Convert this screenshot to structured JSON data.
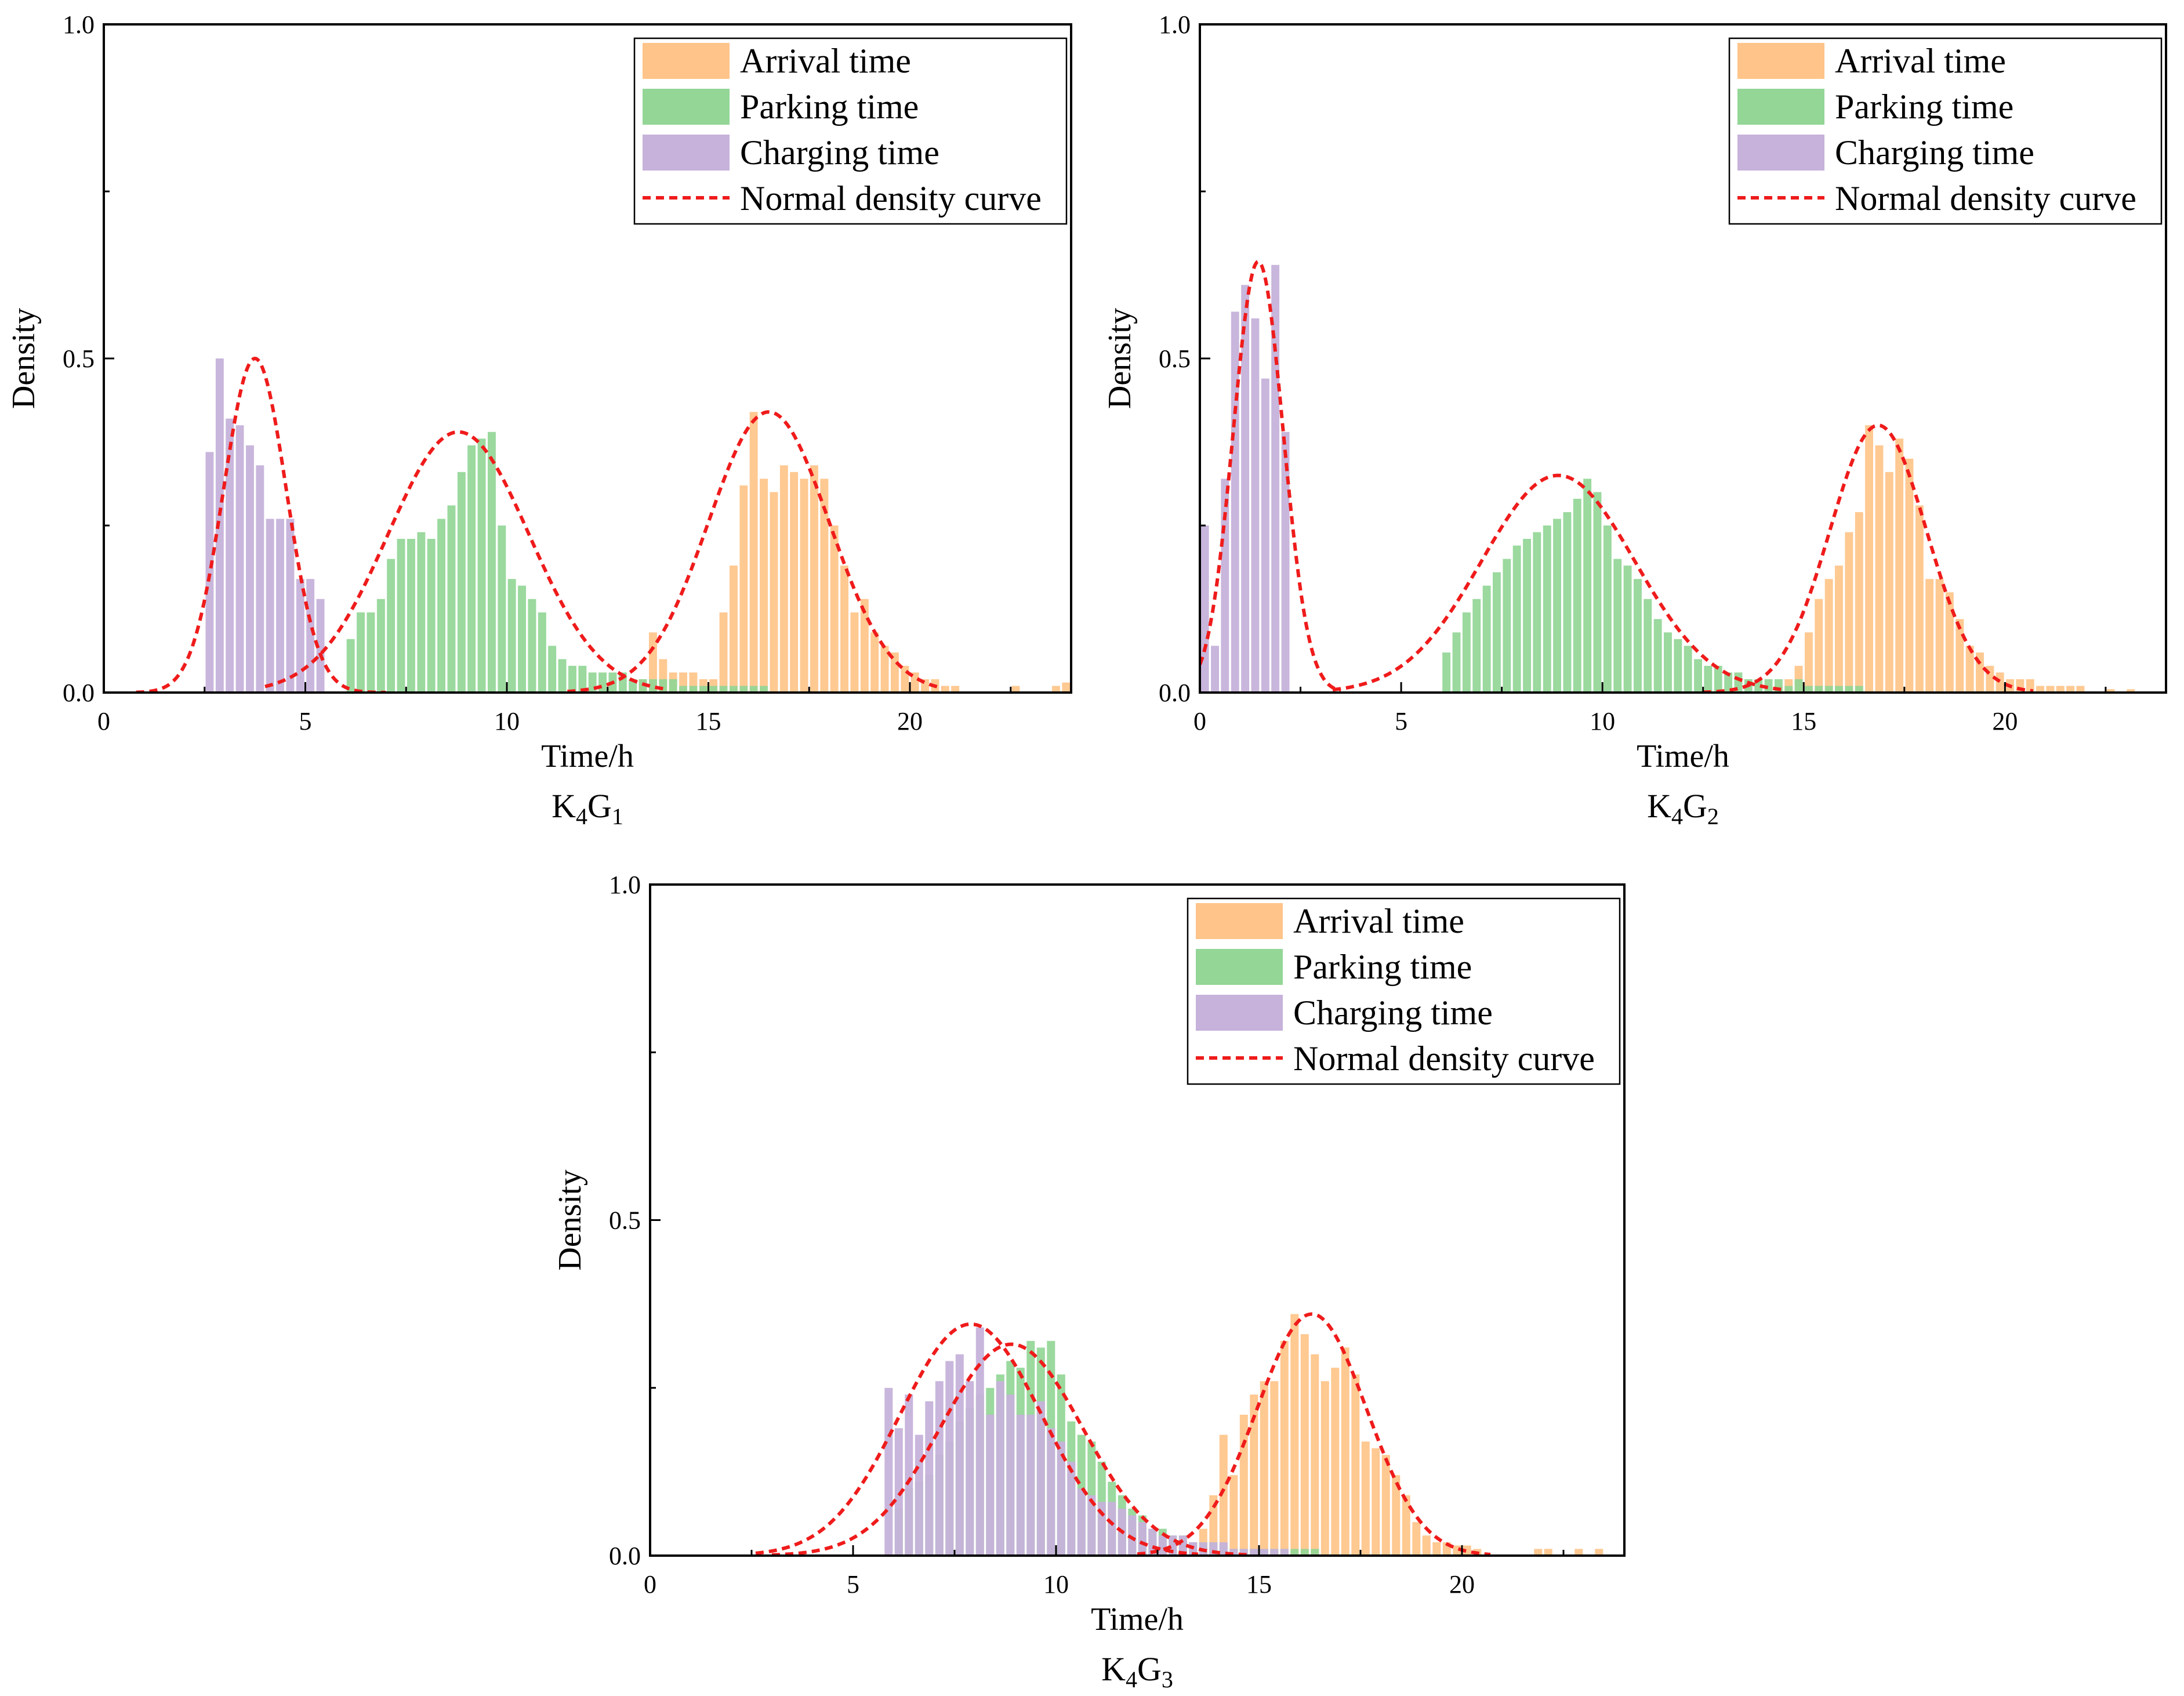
{
  "figure": {
    "colors": {
      "arrival": "#ffc489",
      "parking": "#93d696",
      "charging": "#c6b2da",
      "curve": "#ef1b1b",
      "axis": "#000000"
    }
  },
  "chart_data": [
    {
      "type": "bar",
      "title": "",
      "panel_label": {
        "main": "K",
        "sub1": "4",
        "mid": "G",
        "sub2": "1"
      },
      "xlabel": "Time/h",
      "ylabel": "Density",
      "xlim": [
        0,
        24
      ],
      "ylim": [
        0,
        1.0
      ],
      "xticks": [
        0,
        5,
        10,
        15,
        20
      ],
      "yticks": [
        0.0,
        0.5,
        1.0
      ],
      "ytick_labels": [
        "0.0",
        "0.5",
        "1.0"
      ],
      "bin_width": 0.25,
      "legend": {
        "placement": "top-right",
        "entries": [
          "Arrival time",
          "Parking time",
          "Charging time",
          "Normal density curve"
        ]
      },
      "series": [
        {
          "name": "Arrival time",
          "kind": "hist",
          "color_key": "arrival",
          "start": 13.25,
          "values": [
            0.02,
            0.09,
            0.05,
            0.03,
            0.03,
            0.03,
            0.02,
            0.02,
            0.12,
            0.19,
            0.31,
            0.42,
            0.32,
            0.3,
            0.34,
            0.33,
            0.32,
            0.34,
            0.32,
            0.25,
            0.19,
            0.12,
            0.14,
            0.09,
            0.07,
            0.06,
            0.04,
            0.03,
            0.02,
            0.02,
            0.01,
            0.01
          ]
        },
        {
          "name": "Arrival time",
          "kind": "hist",
          "color_key": "arrival",
          "start": 22.5,
          "values": [
            0.01
          ]
        },
        {
          "name": "Arrival time",
          "kind": "hist",
          "color_key": "arrival",
          "start": 23.5,
          "values": [
            0.01,
            0.015
          ]
        },
        {
          "name": "Parking time",
          "kind": "hist",
          "color_key": "parking",
          "start": 6.0,
          "values": [
            0.08,
            0.12,
            0.12,
            0.14,
            0.2,
            0.23,
            0.23,
            0.24,
            0.23,
            0.26,
            0.28,
            0.33,
            0.37,
            0.38,
            0.39,
            0.25,
            0.17,
            0.16,
            0.14,
            0.12,
            0.07,
            0.05,
            0.04,
            0.04,
            0.03,
            0.03,
            0.03,
            0.03,
            0.02,
            0.02,
            0.02,
            0.02,
            0.02,
            0.01,
            0.01,
            0.01,
            0.01,
            0.01,
            0.01,
            0.01,
            0.01,
            0.01
          ]
        },
        {
          "name": "Charging time",
          "kind": "hist",
          "color_key": "charging",
          "start": 2.5,
          "values": [
            0.36,
            0.5,
            0.41,
            0.4,
            0.37,
            0.34,
            0.26,
            0.26,
            0.26,
            0.17,
            0.17,
            0.14
          ]
        },
        {
          "name": "Normal density curve",
          "kind": "normal",
          "color_key": "curve",
          "mean": 3.75,
          "peak": 0.5,
          "sd": 0.78,
          "range": [
            0.8,
            7.0
          ]
        },
        {
          "name": "Normal density curve",
          "kind": "normal",
          "color_key": "curve",
          "mean": 8.8,
          "peak": 0.39,
          "sd": 1.75,
          "range": [
            4.0,
            14.0
          ]
        },
        {
          "name": "Normal density curve",
          "kind": "normal",
          "color_key": "curve",
          "mean": 16.5,
          "peak": 0.42,
          "sd": 1.5,
          "range": [
            11.5,
            20.8
          ]
        }
      ]
    },
    {
      "type": "bar",
      "title": "",
      "panel_label": {
        "main": "K",
        "sub1": "4",
        "mid": "G",
        "sub2": "2"
      },
      "xlabel": "Time/h",
      "ylabel": "Density",
      "xlim": [
        0,
        24
      ],
      "ylim": [
        0,
        1.0
      ],
      "xticks": [
        0,
        5,
        10,
        15,
        20
      ],
      "yticks": [
        0.0,
        0.5,
        1.0
      ],
      "ytick_labels": [
        "0.0",
        "0.5",
        "1.0"
      ],
      "bin_width": 0.25,
      "legend": {
        "placement": "top-right",
        "entries": [
          "Arrival time",
          "Parking time",
          "Charging time",
          "Normal density curve"
        ]
      },
      "series": [
        {
          "name": "Arrival time",
          "kind": "hist",
          "color_key": "arrival",
          "start": 14.25,
          "values": [
            0.01,
            0.02,
            0.04,
            0.09,
            0.14,
            0.17,
            0.19,
            0.24,
            0.27,
            0.4,
            0.37,
            0.33,
            0.38,
            0.35,
            0.28,
            0.17,
            0.17,
            0.15,
            0.11,
            0.07,
            0.06,
            0.04,
            0.03,
            0.02,
            0.02,
            0.02,
            0.01,
            0.01,
            0.01,
            0.01,
            0.01
          ]
        },
        {
          "name": "Arrival time",
          "kind": "hist",
          "color_key": "arrival",
          "start": 22.5,
          "values": [
            0.005
          ]
        },
        {
          "name": "Arrival time",
          "kind": "hist",
          "color_key": "arrival",
          "start": 23.0,
          "values": [
            0.005
          ]
        },
        {
          "name": "Parking time",
          "kind": "hist",
          "color_key": "parking",
          "start": 6.0,
          "values": [
            0.06,
            0.09,
            0.12,
            0.14,
            0.16,
            0.18,
            0.2,
            0.22,
            0.23,
            0.24,
            0.25,
            0.26,
            0.27,
            0.29,
            0.32,
            0.3,
            0.25,
            0.2,
            0.19,
            0.17,
            0.14,
            0.11,
            0.09,
            0.08,
            0.07,
            0.05,
            0.04,
            0.04,
            0.03,
            0.03,
            0.02,
            0.02,
            0.02,
            0.02,
            0.01,
            0.02,
            0.01,
            0.01,
            0.01,
            0.01,
            0.01,
            0.01
          ]
        },
        {
          "name": "Charging time",
          "kind": "hist",
          "color_key": "charging",
          "start": 0.0,
          "values": [
            0.25,
            0.07,
            0.32,
            0.57,
            0.61,
            0.56,
            0.47,
            0.64,
            0.39
          ]
        },
        {
          "name": "Normal density curve",
          "kind": "normal",
          "color_key": "curve",
          "mean": 1.45,
          "peak": 0.645,
          "sd": 0.62,
          "range": [
            0.0,
            3.5
          ]
        },
        {
          "name": "Normal density curve",
          "kind": "normal",
          "color_key": "curve",
          "mean": 8.9,
          "peak": 0.325,
          "sd": 1.9,
          "range": [
            3.3,
            14.5
          ]
        },
        {
          "name": "Normal density curve",
          "kind": "normal",
          "color_key": "curve",
          "mean": 16.85,
          "peak": 0.4,
          "sd": 1.2,
          "range": [
            12.5,
            20.7
          ]
        }
      ]
    },
    {
      "type": "bar",
      "title": "",
      "panel_label": {
        "main": "K",
        "sub1": "4",
        "mid": "G",
        "sub2": "3"
      },
      "xlabel": "Time/h",
      "ylabel": "Density",
      "xlim": [
        0,
        24
      ],
      "ylim": [
        0,
        1.0
      ],
      "xticks": [
        0,
        5,
        10,
        15,
        20
      ],
      "yticks": [
        0.0,
        0.5,
        1.0
      ],
      "ytick_labels": [
        "0.0",
        "0.5",
        "1.0"
      ],
      "bin_width": 0.25,
      "legend": {
        "placement": "top-right",
        "entries": [
          "Arrival time",
          "Parking time",
          "Charging time",
          "Normal density curve"
        ]
      },
      "series": [
        {
          "name": "Arrival time",
          "kind": "hist",
          "color_key": "arrival",
          "start": 13.5,
          "values": [
            0.04,
            0.09,
            0.18,
            0.12,
            0.21,
            0.24,
            0.26,
            0.26,
            0.32,
            0.36,
            0.33,
            0.3,
            0.26,
            0.28,
            0.31,
            0.27,
            0.17,
            0.16,
            0.15,
            0.12,
            0.09,
            0.05,
            0.03,
            0.02,
            0.02,
            0.015,
            0.015,
            0.01
          ]
        },
        {
          "name": "Arrival time",
          "kind": "hist",
          "color_key": "arrival",
          "start": 21.75,
          "values": [
            0.01,
            0.01
          ]
        },
        {
          "name": "Arrival time",
          "kind": "hist",
          "color_key": "arrival",
          "start": 22.75,
          "values": [
            0.01
          ]
        },
        {
          "name": "Arrival time",
          "kind": "hist",
          "color_key": "arrival",
          "start": 23.25,
          "values": [
            0.01
          ]
        },
        {
          "name": "Parking time",
          "kind": "hist",
          "color_key": "parking",
          "start": 6.0,
          "values": [
            0.07,
            0.1,
            0.11,
            0.12,
            0.15,
            0.17,
            0.2,
            0.22,
            0.24,
            0.25,
            0.27,
            0.29,
            0.28,
            0.32,
            0.31,
            0.32,
            0.27,
            0.2,
            0.18,
            0.17,
            0.14,
            0.11,
            0.09,
            0.07,
            0.06,
            0.04,
            0.04,
            0.03,
            0.03,
            0.02,
            0.02,
            0.02,
            0.015,
            0.01,
            0.01,
            0.01,
            0.01,
            0.01,
            0.01,
            0.01,
            0.01,
            0.01
          ]
        },
        {
          "name": "Charging time",
          "kind": "hist",
          "color_key": "charging",
          "start": 5.75,
          "values": [
            0.25,
            0.19,
            0.24,
            0.18,
            0.23,
            0.26,
            0.29,
            0.3,
            0.26,
            0.34,
            0.21,
            0.26,
            0.24,
            0.21,
            0.21,
            0.23,
            0.19,
            0.17,
            0.14,
            0.1,
            0.09,
            0.08,
            0.08,
            0.07,
            0.06,
            0.05,
            0.04,
            0.03,
            0.03,
            0.03,
            0.02,
            0.02,
            0.02,
            0.02,
            0.01,
            0.01,
            0.01,
            0.01,
            0.01,
            0.01
          ]
        },
        {
          "name": "Normal density curve",
          "kind": "normal",
          "color_key": "curve",
          "mean": 7.9,
          "peak": 0.345,
          "sd": 1.75,
          "range": [
            2.6,
            13.5
          ]
        },
        {
          "name": "Normal density curve",
          "kind": "normal",
          "color_key": "curve",
          "mean": 8.9,
          "peak": 0.315,
          "sd": 1.75,
          "range": [
            3.0,
            14.8
          ]
        },
        {
          "name": "Normal density curve",
          "kind": "normal",
          "color_key": "curve",
          "mean": 16.3,
          "peak": 0.36,
          "sd": 1.35,
          "range": [
            12.0,
            20.7
          ]
        }
      ]
    }
  ]
}
